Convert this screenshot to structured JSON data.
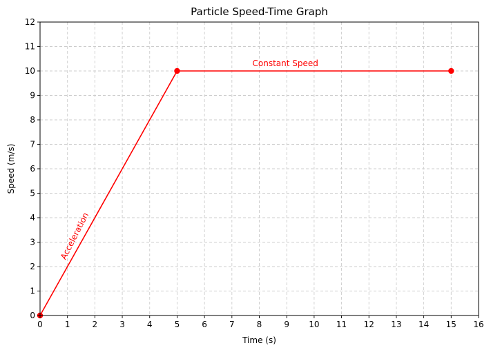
{
  "chart_data": {
    "type": "line",
    "title": "Particle Speed-Time Graph",
    "xlabel": "Time (s)",
    "ylabel": "Speed (m/s)",
    "xlim": [
      0,
      16
    ],
    "ylim": [
      0,
      12
    ],
    "xticks": [
      0,
      1,
      2,
      3,
      4,
      5,
      6,
      7,
      8,
      9,
      10,
      11,
      12,
      13,
      14,
      15,
      16
    ],
    "yticks": [
      0,
      1,
      2,
      3,
      4,
      5,
      6,
      7,
      8,
      9,
      10,
      11,
      12
    ],
    "grid": true,
    "series": [
      {
        "color": "#ff0000",
        "x": [
          0,
          5,
          15
        ],
        "y": [
          0,
          10,
          10
        ]
      }
    ],
    "annotations": [
      {
        "text": "Acceleration",
        "x": 1.35,
        "y": 3.2,
        "color": "#ff0000",
        "rotation": -63
      },
      {
        "text": "Constant Speed",
        "x": 8.95,
        "y": 10.2,
        "color": "#ff0000",
        "rotation": 0
      }
    ]
  }
}
